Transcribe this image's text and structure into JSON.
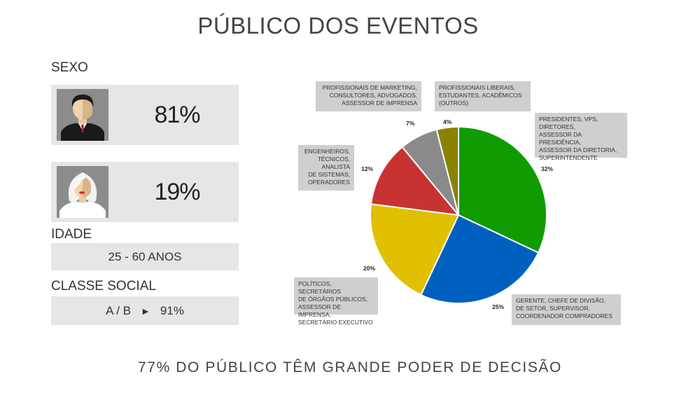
{
  "title": "PÚBLICO DOS EVENTOS",
  "sexo": {
    "label": "SEXO",
    "male": {
      "pct": "81%",
      "icon": "male-avatar-icon"
    },
    "female": {
      "pct": "19%",
      "icon": "female-avatar-icon"
    }
  },
  "idade": {
    "label": "IDADE",
    "value": "25 - 60 ANOS"
  },
  "classe": {
    "label": "CLASSE SOCIAL",
    "class": "A / B",
    "arrow": "►",
    "pct": "91%"
  },
  "footer": "77% DO PÚBLICO TÊM GRANDE PODER DE DECISÃO",
  "colors": {
    "green": "#109c00",
    "blue": "#0060c0",
    "yellow": "#e0c000",
    "red": "#c83232",
    "gray": "#8a8a8a",
    "olive": "#8a8200",
    "callout": "#cfcfcf",
    "box": "#e6e6e6"
  },
  "chart_data": {
    "type": "pie",
    "slices": [
      {
        "label": "PRESIDENTES, VPS, DIRETORES, ASSESSOR DA PRESIDÊNCIA, ASSESSOR DA DIRETORIA, SUPERINTENDENTE",
        "lines": [
          "PRESIDENTES, VPS,",
          "DIRETORES,",
          "ASSESSOR DA PRESIDÊNCIA,",
          "ASSESSOR DA DIRETORIA,",
          "SUPERINTENDENTE"
        ],
        "value": 32,
        "pct_label": "32%",
        "color": "#109c00"
      },
      {
        "label": "GERENTE, CHEFE DE DIVISÃO, DE SETOR, SUPERVISOR, COORDENADOR COMPRADORES",
        "lines": [
          "GERENTE, CHEFE DE DIVISÃO,",
          "DE SETOR, SUPERVISOR,",
          "COORDENADOR COMPRADORES"
        ],
        "value": 25,
        "pct_label": "25%",
        "color": "#0060c0"
      },
      {
        "label": "POLÍTICOS, SECRETÁRIOS DE ÓRGÃOS PÚBLICOS, ASSESSOR DE IMPRENSA, SECRETÁRIO EXECUTIVO",
        "lines": [
          "POLÍTICOS, SECRETÁRIOS",
          "DE ÓRGÃOS PÚBLICOS,",
          "ASSESSOR DE IMPRENSA,",
          "SECRETÁRIO EXECUTIVO"
        ],
        "value": 20,
        "pct_label": "20%",
        "color": "#e0c000"
      },
      {
        "label": "ENGENHEIROS, TÉCNICOS, ANALISTA DE SISTEMAS, OPERADORES",
        "lines": [
          "ENGENHEIROS,",
          "TÉCNICOS,",
          "ANALISTA",
          "DE SISTEMAS,",
          "OPERADORES"
        ],
        "value": 12,
        "pct_label": "12%",
        "color": "#c83232"
      },
      {
        "label": "PROFISSIONAIS DE MARKETING, CONSULTORES, ADVOGADOS, ASSESSOR DE IMPRENSA",
        "lines": [
          "PROFISSIONAIS DE MARKETING,",
          "CONSULTORES, ADVOGADOS,",
          "ASSESSOR DE IMPRENSA"
        ],
        "value": 7,
        "pct_label": "7%",
        "color": "#8a8a8a"
      },
      {
        "label": "PROFISSIONAIS LIBERAIS, ESTUDANTES, ACADÊMICOS (OUTROS)",
        "lines": [
          "PROFISSIONAIS LIBERAIS,",
          "ESTUDANTES, ACADÊMICOS",
          "(OUTROS)"
        ],
        "value": 4,
        "pct_label": "4%",
        "color": "#8a8200"
      }
    ]
  }
}
